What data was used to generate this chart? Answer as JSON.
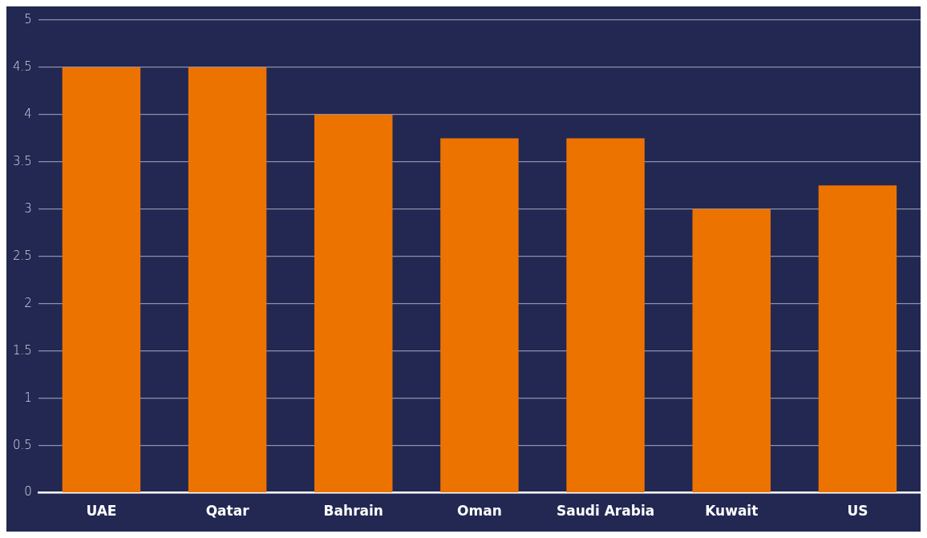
{
  "chart_data": {
    "type": "bar",
    "categories": [
      "UAE",
      "Qatar",
      "Bahrain",
      "Oman",
      "Saudi Arabia",
      "Kuwait",
      "US"
    ],
    "values": [
      4.5,
      4.5,
      4,
      3.75,
      3.75,
      3,
      3.25
    ],
    "color": "#ed7300",
    "ylim": [
      0,
      5
    ],
    "yticks": [
      0,
      0.5,
      1,
      1.5,
      2,
      2.5,
      3,
      3.5,
      4,
      4.5,
      5
    ],
    "grid": "y"
  }
}
